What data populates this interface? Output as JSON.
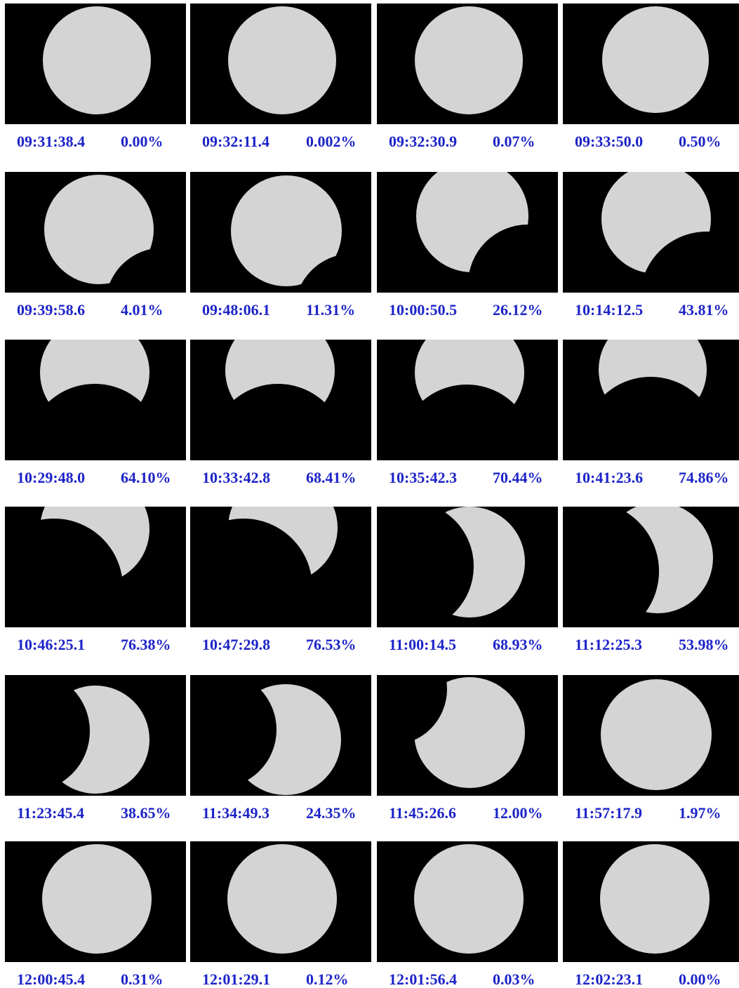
{
  "accent_color": "#1d24c8",
  "sun_color": "#d4d4d4",
  "frames": [
    {
      "time": "09:31:38.4",
      "obscuration": "0.00%",
      "coverage": 0.0
    },
    {
      "time": "09:32:11.4",
      "obscuration": "0.002%",
      "coverage": 2e-05
    },
    {
      "time": "09:32:30.9",
      "obscuration": "0.07%",
      "coverage": 0.0007
    },
    {
      "time": "09:33:50.0",
      "obscuration": "0.50%",
      "coverage": 0.005
    },
    {
      "time": "09:39:58.6",
      "obscuration": "4.01%",
      "coverage": 0.0401
    },
    {
      "time": "09:48:06.1",
      "obscuration": "11.31%",
      "coverage": 0.1131
    },
    {
      "time": "10:00:50.5",
      "obscuration": "26.12%",
      "coverage": 0.2612
    },
    {
      "time": "10:14:12.5",
      "obscuration": "43.81%",
      "coverage": 0.4381
    },
    {
      "time": "10:29:48.0",
      "obscuration": "64.10%",
      "coverage": 0.641
    },
    {
      "time": "10:33:42.8",
      "obscuration": "68.41%",
      "coverage": 0.6841
    },
    {
      "time": "10:35:42.3",
      "obscuration": "70.44%",
      "coverage": 0.7044
    },
    {
      "time": "10:41:23.6",
      "obscuration": "74.86%",
      "coverage": 0.7486
    },
    {
      "time": "10:46:25.1",
      "obscuration": "76.38%",
      "coverage": 0.7638
    },
    {
      "time": "10:47:29.8",
      "obscuration": "76.53%",
      "coverage": 0.7653
    },
    {
      "time": "11:00:14.5",
      "obscuration": "68.93%",
      "coverage": 0.6893
    },
    {
      "time": "11:12:25.3",
      "obscuration": "53.98%",
      "coverage": 0.5398
    },
    {
      "time": "11:23:45.4",
      "obscuration": "38.65%",
      "coverage": 0.3865
    },
    {
      "time": "11:34:49.3",
      "obscuration": "24.35%",
      "coverage": 0.2435
    },
    {
      "time": "11:45:26.6",
      "obscuration": "12.00%",
      "coverage": 0.12
    },
    {
      "time": "11:57:17.9",
      "obscuration": "1.97%",
      "coverage": 0.0197
    },
    {
      "time": "12:00:45.4",
      "obscuration": "0.31%",
      "coverage": 0.0031
    },
    {
      "time": "12:01:29.1",
      "obscuration": "0.12%",
      "coverage": 0.0012
    },
    {
      "time": "12:01:56.4",
      "obscuration": "0.03%",
      "coverage": 0.0003
    },
    {
      "time": "12:02:23.1",
      "obscuration": "0.00%",
      "coverage": 0.0
    }
  ]
}
